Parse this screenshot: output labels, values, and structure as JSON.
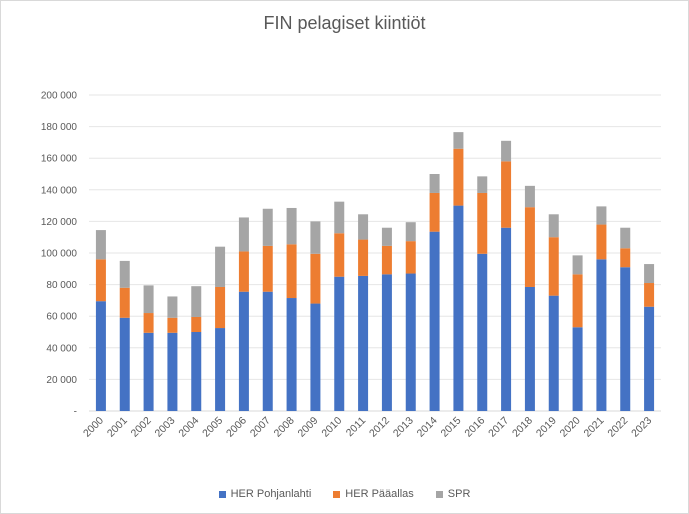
{
  "chart_data": {
    "type": "bar",
    "stacked": true,
    "title": "FIN pelagiset kiintiöt",
    "xlabel": "",
    "ylabel": "",
    "ylim": [
      0,
      200000
    ],
    "yticks": [
      0,
      20000,
      40000,
      60000,
      80000,
      100000,
      120000,
      140000,
      160000,
      180000,
      200000
    ],
    "ytick_labels": [
      "-",
      "20 000",
      "40 000",
      "60 000",
      "80 000",
      "100 000",
      "120 000",
      "140 000",
      "160 000",
      "180 000",
      "200 000"
    ],
    "grid": true,
    "legend_position": "bottom",
    "categories": [
      "2000",
      "2001",
      "2002",
      "2003",
      "2004",
      "2005",
      "2006",
      "2007",
      "2008",
      "2009",
      "2010",
      "2011",
      "2012",
      "2013",
      "2014",
      "2015",
      "2016",
      "2017",
      "2018",
      "2019",
      "2020",
      "2021",
      "2022",
      "2023"
    ],
    "series": [
      {
        "name": "HER Pohjanlahti",
        "color": "#4472c4",
        "values": [
          69500,
          59000,
          49500,
          49500,
          50000,
          52500,
          75500,
          75500,
          71500,
          68000,
          85000,
          85500,
          86500,
          87000,
          113500,
          130000,
          99500,
          116000,
          78500,
          73000,
          53000,
          96000,
          91000,
          66000
        ]
      },
      {
        "name": "HER Pääallas",
        "color": "#ed7d31",
        "values": [
          26500,
          19000,
          12500,
          9500,
          9500,
          26000,
          25500,
          29000,
          34000,
          31500,
          27500,
          23000,
          18000,
          20500,
          24500,
          36000,
          38500,
          42000,
          50500,
          37000,
          33500,
          22000,
          12000,
          15000
        ]
      },
      {
        "name": "SPR",
        "color": "#a5a5a5",
        "values": [
          18500,
          17000,
          17500,
          13500,
          19500,
          25500,
          21500,
          23500,
          23000,
          20500,
          20000,
          16000,
          11500,
          12000,
          12000,
          10500,
          10500,
          13000,
          13500,
          14500,
          12000,
          11500,
          13000,
          12000
        ]
      }
    ]
  }
}
